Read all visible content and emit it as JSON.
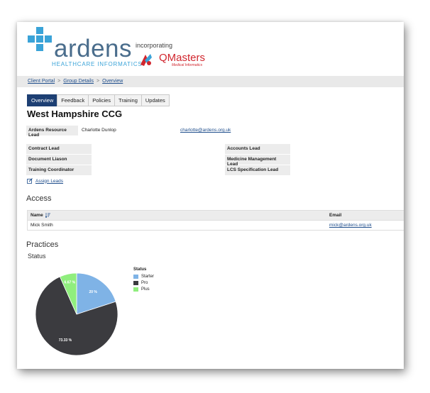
{
  "branding": {
    "logo_word": "ardens",
    "logo_sub": "HEALTHCARE INFORMATICS",
    "incorporating": "incorporating",
    "partner_word": "QMasters",
    "partner_sub": "Medical Informatics"
  },
  "breadcrumb": [
    "Client Portal",
    "Group Details",
    "Overview"
  ],
  "breadcrumb_sep": ">",
  "tabs": [
    "Overview",
    "Feedback",
    "Policies",
    "Training",
    "Updates"
  ],
  "active_tab": "Overview",
  "page_title": "West Hampshire CCG",
  "resource_lead": {
    "label": "Ardens Resource Lead",
    "name": "Charlotte Dunlop",
    "email": "charlotte@ardens.org.uk"
  },
  "leads_left": [
    "Contract Lead",
    "Document Liason",
    "Training Coordinator"
  ],
  "leads_right": [
    "Accounts Lead",
    "Medicine Management Lead",
    "LCS Specification Lead"
  ],
  "assign_leads": "Assign Leads",
  "access": {
    "heading": "Access",
    "columns": [
      "Name",
      "Email"
    ],
    "rows": [
      {
        "name": "Mick Smith",
        "email": "mick@ardens.org.uk"
      }
    ]
  },
  "practices_heading": "Practices",
  "status_heading": "Status",
  "chart_data": {
    "type": "pie",
    "title": "Status",
    "legend_title": "Status",
    "legend_position": "right",
    "slices": [
      {
        "name": "Starter",
        "value": 20,
        "label": "20 %",
        "color": "#7fb3e6"
      },
      {
        "name": "Pro",
        "value": 73.33,
        "label": "73.33 %",
        "color": "#3b3b3f"
      },
      {
        "name": "Plus",
        "value": 6.67,
        "label": "6.67 %",
        "color": "#90ee7e"
      }
    ]
  }
}
